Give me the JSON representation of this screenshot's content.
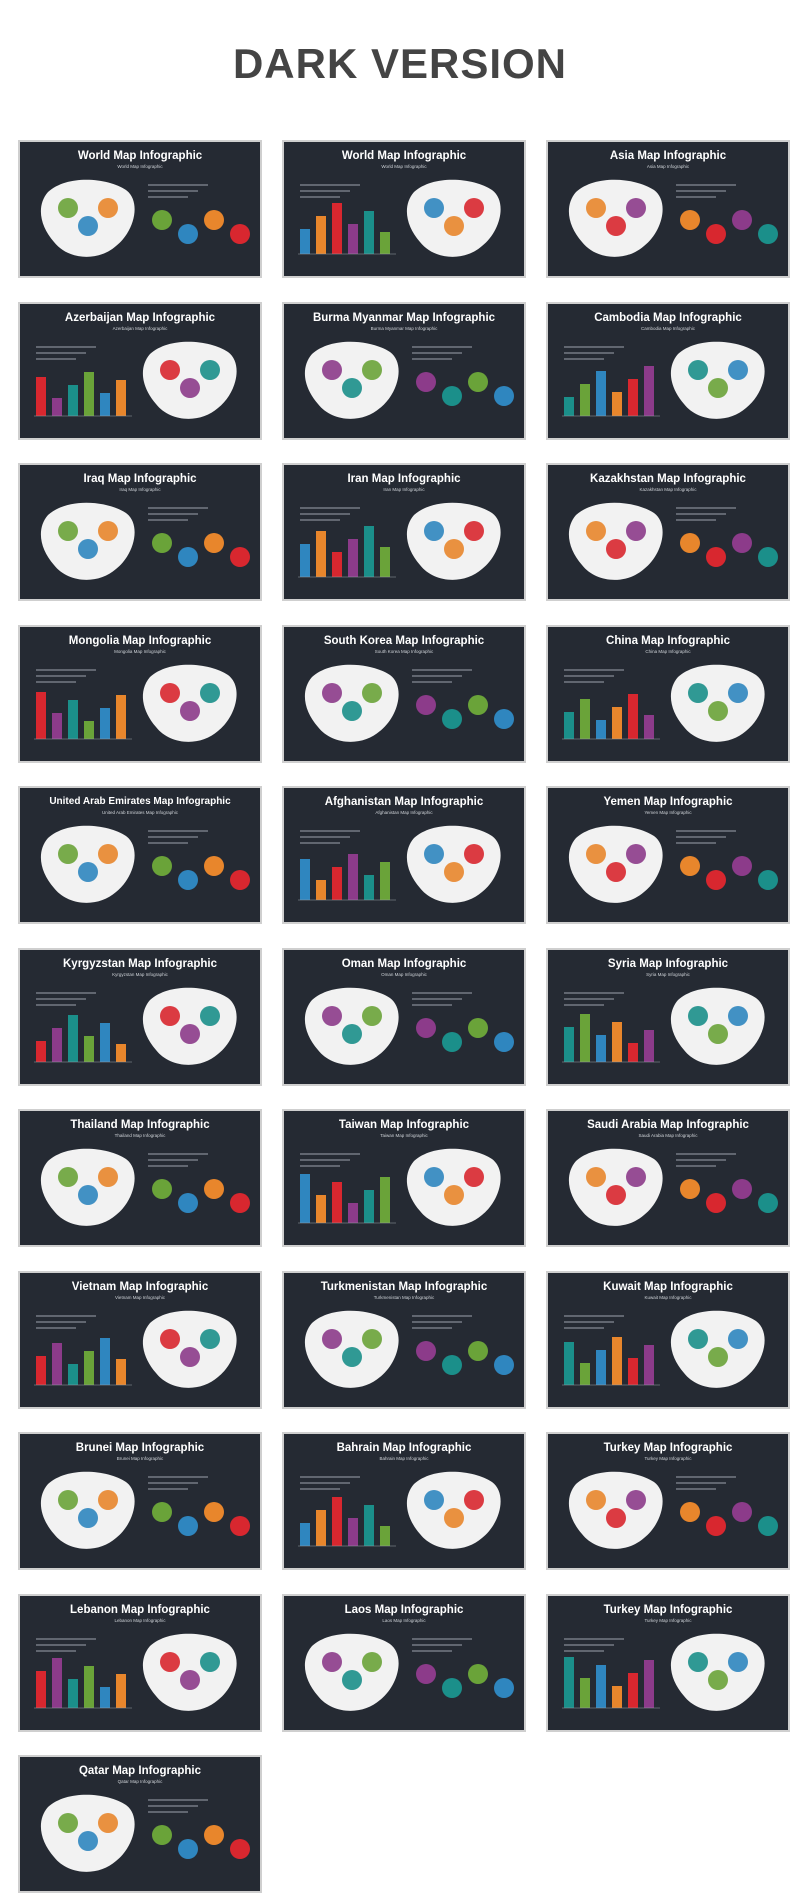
{
  "heading": "DARK VERSION",
  "colors": {
    "background": "#252a33",
    "border": "#cfcfcf",
    "green": "#6aa339",
    "blue": "#2f86bf",
    "orange": "#e8862c",
    "red": "#d8272f",
    "purple": "#8c3b8a",
    "teal": "#1b8f8a",
    "map": "#f2f2f2"
  },
  "slides": [
    {
      "title": "World Map Infographic",
      "subtitle": "World Map Infographic"
    },
    {
      "title": "World Map Infographic",
      "subtitle": "World Map Infographic"
    },
    {
      "title": "Asia Map Infographic",
      "subtitle": "Asia Map Infographic"
    },
    {
      "title": "Azerbaijan Map Infographic",
      "subtitle": "Azerbaijan Map Infographic"
    },
    {
      "title": "Burma Myanmar Map Infographic",
      "subtitle": "Burma Myanmar Map Infographic"
    },
    {
      "title": "Cambodia Map Infographic",
      "subtitle": "Cambodia Map Infographic"
    },
    {
      "title": "Iraq Map Infographic",
      "subtitle": "Iraq Map Infographic"
    },
    {
      "title": "Iran Map Infographic",
      "subtitle": "Iran Map Infographic"
    },
    {
      "title": "Kazakhstan Map Infographic",
      "subtitle": "Kazakhstan Map Infographic"
    },
    {
      "title": "Mongolia Map Infographic",
      "subtitle": "Mongolia Map Infographic"
    },
    {
      "title": "South Korea Map Infographic",
      "subtitle": "South Korea Map Infographic"
    },
    {
      "title": "China Map Infographic",
      "subtitle": "China Map Infographic"
    },
    {
      "title": "United Arab Emirates Map Infographic",
      "subtitle": "United Arab Emirates Map Infographic"
    },
    {
      "title": "Afghanistan Map Infographic",
      "subtitle": "Afghanistan Map Infographic"
    },
    {
      "title": "Yemen Map Infographic",
      "subtitle": "Yemen Map Infographic"
    },
    {
      "title": "Kyrgyzstan Map Infographic",
      "subtitle": "Kyrgyzstan Map Infographic"
    },
    {
      "title": "Oman Map Infographic",
      "subtitle": "Oman Map Infographic"
    },
    {
      "title": "Syria Map Infographic",
      "subtitle": "Syria Map Infographic"
    },
    {
      "title": "Thailand Map Infographic",
      "subtitle": "Thailand Map Infographic"
    },
    {
      "title": "Taiwan Map Infographic",
      "subtitle": "Taiwan Map Infographic"
    },
    {
      "title": "Saudi Arabia Map Infographic",
      "subtitle": "Saudi Arabia Map Infographic"
    },
    {
      "title": "Vietnam Map Infographic",
      "subtitle": "Vietnam Map Infographic"
    },
    {
      "title": "Turkmenistan Map Infographic",
      "subtitle": "Turkmenistan Map Infographic"
    },
    {
      "title": "Kuwait Map Infographic",
      "subtitle": "Kuwait Map Infographic"
    },
    {
      "title": "Brunei Map Infographic",
      "subtitle": "Brunei Map Infographic"
    },
    {
      "title": "Bahrain Map Infographic",
      "subtitle": "Bahrain Map Infographic"
    },
    {
      "title": "Turkey Map Infographic",
      "subtitle": "Turkey Map Infographic"
    },
    {
      "title": "Lebanon Map Infographic",
      "subtitle": "Lebanon Map Infographic"
    },
    {
      "title": "Laos Map Infographic",
      "subtitle": "Laos Map Infographic"
    },
    {
      "title": "Turkey Map Infographic",
      "subtitle": "Turkey Map Infographic"
    },
    {
      "title": "Qatar Map Infographic",
      "subtitle": "Qatar Map Infographic"
    }
  ]
}
